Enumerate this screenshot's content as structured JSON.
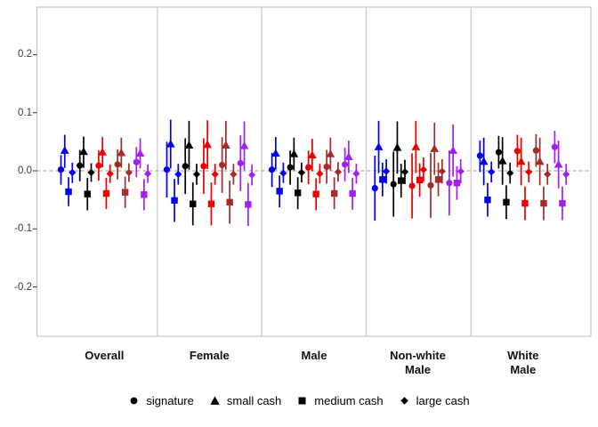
{
  "chart_data": {
    "type": "scatter",
    "subtype": "pointrange-facets",
    "title": "",
    "xlabel": "",
    "ylabel": "",
    "grid": false,
    "legend_position": "bottom",
    "zero_reference_line": 0.0,
    "ylim": [
      -0.28,
      0.28
    ],
    "yticks": [
      0.2,
      0.1,
      0.0,
      -0.1,
      -0.2
    ],
    "ytick_labels": [
      "0.2",
      "0.1",
      "0.0",
      "-0.1",
      "-0.2"
    ],
    "colors": {
      "frame": "#c6c6c6",
      "zero_line": "#999999",
      "tick": "#333333",
      "axis_text": "#383838"
    },
    "group_colors": {
      "blue": "#0000ee",
      "black": "#000000",
      "red": "#ee0000",
      "darkred": "#a52a2a",
      "purple": "#a020f0"
    },
    "legend": [
      {
        "shape": "circle",
        "label": "signature"
      },
      {
        "shape": "triangle",
        "label": "small cash"
      },
      {
        "shape": "square",
        "label": "medium cash"
      },
      {
        "shape": "diamond",
        "label": "large cash"
      }
    ],
    "panels": [
      {
        "label": "Overall",
        "groups": [
          {
            "color": "blue",
            "points": [
              [
                "circle",
                0.002,
                -0.024,
                0.027
              ],
              [
                "triangle",
                0.035,
                0.005,
                0.062
              ],
              [
                "square",
                -0.036,
                -0.061,
                -0.011
              ],
              [
                "diamond",
                -0.003,
                -0.021,
                0.014
              ]
            ]
          },
          {
            "color": "black",
            "points": [
              [
                "circle",
                0.009,
                -0.018,
                0.036
              ],
              [
                "triangle",
                0.033,
                0.005,
                0.059
              ],
              [
                "square",
                -0.04,
                -0.068,
                -0.012
              ],
              [
                "diamond",
                -0.003,
                -0.019,
                0.013
              ]
            ]
          },
          {
            "color": "red",
            "points": [
              [
                "circle",
                0.009,
                -0.017,
                0.035
              ],
              [
                "triangle",
                0.032,
                0.006,
                0.058
              ],
              [
                "square",
                -0.039,
                -0.066,
                -0.012
              ],
              [
                "diamond",
                -0.005,
                -0.021,
                0.011
              ]
            ]
          },
          {
            "color": "darkred",
            "points": [
              [
                "circle",
                0.011,
                -0.015,
                0.037
              ],
              [
                "triangle",
                0.031,
                0.005,
                0.057
              ],
              [
                "square",
                -0.037,
                -0.064,
                -0.01
              ],
              [
                "diamond",
                -0.003,
                -0.019,
                0.013
              ]
            ]
          },
          {
            "color": "purple",
            "points": [
              [
                "circle",
                0.015,
                -0.011,
                0.041
              ],
              [
                "triangle",
                0.03,
                0.004,
                0.056
              ],
              [
                "square",
                -0.041,
                -0.068,
                -0.014
              ],
              [
                "diamond",
                -0.005,
                -0.021,
                0.011
              ]
            ]
          }
        ]
      },
      {
        "label": "Female",
        "groups": [
          {
            "color": "blue",
            "points": [
              [
                "circle",
                0.002,
                -0.046,
                0.05
              ],
              [
                "triangle",
                0.046,
                0.004,
                0.088
              ],
              [
                "square",
                -0.051,
                -0.088,
                -0.014
              ],
              [
                "diamond",
                -0.006,
                -0.024,
                0.012
              ]
            ]
          },
          {
            "color": "black",
            "points": [
              [
                "circle",
                0.008,
                -0.04,
                0.056
              ],
              [
                "triangle",
                0.044,
                0.002,
                0.086
              ],
              [
                "square",
                -0.057,
                -0.094,
                -0.02
              ],
              [
                "diamond",
                -0.006,
                -0.024,
                0.012
              ]
            ]
          },
          {
            "color": "red",
            "points": [
              [
                "circle",
                0.008,
                -0.04,
                0.056
              ],
              [
                "triangle",
                0.045,
                0.003,
                0.087
              ],
              [
                "square",
                -0.057,
                -0.094,
                -0.02
              ],
              [
                "diamond",
                -0.006,
                -0.024,
                0.012
              ]
            ]
          },
          {
            "color": "darkred",
            "points": [
              [
                "circle",
                0.01,
                -0.038,
                0.058
              ],
              [
                "triangle",
                0.044,
                0.002,
                0.086
              ],
              [
                "square",
                -0.054,
                -0.091,
                -0.017
              ],
              [
                "diamond",
                -0.006,
                -0.024,
                0.012
              ]
            ]
          },
          {
            "color": "purple",
            "points": [
              [
                "circle",
                0.013,
                -0.035,
                0.061
              ],
              [
                "triangle",
                0.043,
                0.001,
                0.085
              ],
              [
                "square",
                -0.058,
                -0.095,
                -0.021
              ],
              [
                "diamond",
                -0.007,
                -0.025,
                0.011
              ]
            ]
          }
        ]
      },
      {
        "label": "Male",
        "groups": [
          {
            "color": "blue",
            "points": [
              [
                "circle",
                0.002,
                -0.028,
                0.031
              ],
              [
                "triangle",
                0.03,
                0.002,
                0.058
              ],
              [
                "square",
                -0.035,
                -0.063,
                -0.008
              ],
              [
                "diamond",
                -0.004,
                -0.021,
                0.014
              ]
            ]
          },
          {
            "color": "black",
            "points": [
              [
                "circle",
                0.006,
                -0.024,
                0.035
              ],
              [
                "triangle",
                0.029,
                0.001,
                0.057
              ],
              [
                "square",
                -0.038,
                -0.066,
                -0.011
              ],
              [
                "diamond",
                -0.003,
                -0.02,
                0.014
              ]
            ]
          },
          {
            "color": "red",
            "points": [
              [
                "circle",
                0.006,
                -0.023,
                0.035
              ],
              [
                "triangle",
                0.027,
                -0.001,
                0.055
              ],
              [
                "square",
                -0.04,
                -0.068,
                -0.013
              ],
              [
                "diamond",
                -0.005,
                -0.022,
                0.012
              ]
            ]
          },
          {
            "color": "darkred",
            "points": [
              [
                "circle",
                0.007,
                -0.022,
                0.036
              ],
              [
                "triangle",
                0.029,
                0.001,
                0.057
              ],
              [
                "square",
                -0.039,
                -0.066,
                -0.011
              ],
              [
                "diamond",
                -0.002,
                -0.019,
                0.015
              ]
            ]
          },
          {
            "color": "purple",
            "points": [
              [
                "circle",
                0.011,
                -0.018,
                0.04
              ],
              [
                "triangle",
                0.024,
                -0.004,
                0.052
              ],
              [
                "square",
                -0.039,
                -0.067,
                -0.012
              ],
              [
                "diamond",
                -0.005,
                -0.022,
                0.012
              ]
            ]
          }
        ]
      },
      {
        "label": "Non-white\nMale",
        "groups": [
          {
            "color": "blue",
            "points": [
              [
                "circle",
                -0.03,
                -0.086,
                0.026
              ],
              [
                "triangle",
                0.041,
                -0.004,
                0.086
              ],
              [
                "square",
                -0.015,
                -0.044,
                0.014
              ],
              [
                "diamond",
                -0.001,
                -0.022,
                0.02
              ]
            ]
          },
          {
            "color": "black",
            "points": [
              [
                "circle",
                -0.023,
                -0.079,
                0.033
              ],
              [
                "triangle",
                0.04,
                -0.005,
                0.085
              ],
              [
                "square",
                -0.017,
                -0.046,
                0.012
              ],
              [
                "diamond",
                -0.002,
                -0.023,
                0.019
              ]
            ]
          },
          {
            "color": "red",
            "points": [
              [
                "circle",
                -0.026,
                -0.082,
                0.03
              ],
              [
                "triangle",
                0.041,
                -0.004,
                0.086
              ],
              [
                "square",
                -0.016,
                -0.045,
                0.013
              ],
              [
                "diamond",
                0.002,
                -0.019,
                0.023
              ]
            ]
          },
          {
            "color": "darkred",
            "points": [
              [
                "circle",
                -0.025,
                -0.081,
                0.031
              ],
              [
                "triangle",
                0.038,
                -0.007,
                0.083
              ],
              [
                "square",
                -0.015,
                -0.044,
                0.014
              ],
              [
                "diamond",
                -0.001,
                -0.022,
                0.02
              ]
            ]
          },
          {
            "color": "purple",
            "points": [
              [
                "circle",
                -0.021,
                -0.077,
                0.035
              ],
              [
                "triangle",
                0.035,
                -0.01,
                0.08
              ],
              [
                "square",
                -0.021,
                -0.05,
                0.008
              ],
              [
                "diamond",
                -0.001,
                -0.022,
                0.02
              ]
            ]
          }
        ]
      },
      {
        "label": "White\nMale",
        "groups": [
          {
            "color": "blue",
            "points": [
              [
                "circle",
                0.026,
                -0.002,
                0.052
              ],
              [
                "triangle",
                0.016,
                -0.025,
                0.057
              ],
              [
                "square",
                -0.05,
                -0.079,
                -0.021
              ],
              [
                "diamond",
                -0.002,
                -0.02,
                0.016
              ]
            ]
          },
          {
            "color": "black",
            "points": [
              [
                "circle",
                0.032,
                0.004,
                0.06
              ],
              [
                "triangle",
                0.017,
                -0.024,
                0.058
              ],
              [
                "square",
                -0.054,
                -0.083,
                -0.025
              ],
              [
                "diamond",
                -0.004,
                -0.022,
                0.014
              ]
            ]
          },
          {
            "color": "red",
            "points": [
              [
                "circle",
                0.034,
                0.006,
                0.062
              ],
              [
                "triangle",
                0.016,
                -0.025,
                0.057
              ],
              [
                "square",
                -0.056,
                -0.085,
                -0.027
              ],
              [
                "diamond",
                -0.002,
                -0.02,
                0.016
              ]
            ]
          },
          {
            "color": "darkred",
            "points": [
              [
                "circle",
                0.035,
                0.007,
                0.063
              ],
              [
                "triangle",
                0.016,
                -0.025,
                0.057
              ],
              [
                "square",
                -0.056,
                -0.085,
                -0.027
              ],
              [
                "diamond",
                -0.006,
                -0.024,
                0.012
              ]
            ]
          },
          {
            "color": "purple",
            "points": [
              [
                "circle",
                0.041,
                0.013,
                0.069
              ],
              [
                "triangle",
                0.011,
                -0.03,
                0.052
              ],
              [
                "square",
                -0.056,
                -0.085,
                -0.027
              ],
              [
                "diamond",
                -0.006,
                -0.024,
                0.012
              ]
            ]
          }
        ]
      }
    ]
  }
}
